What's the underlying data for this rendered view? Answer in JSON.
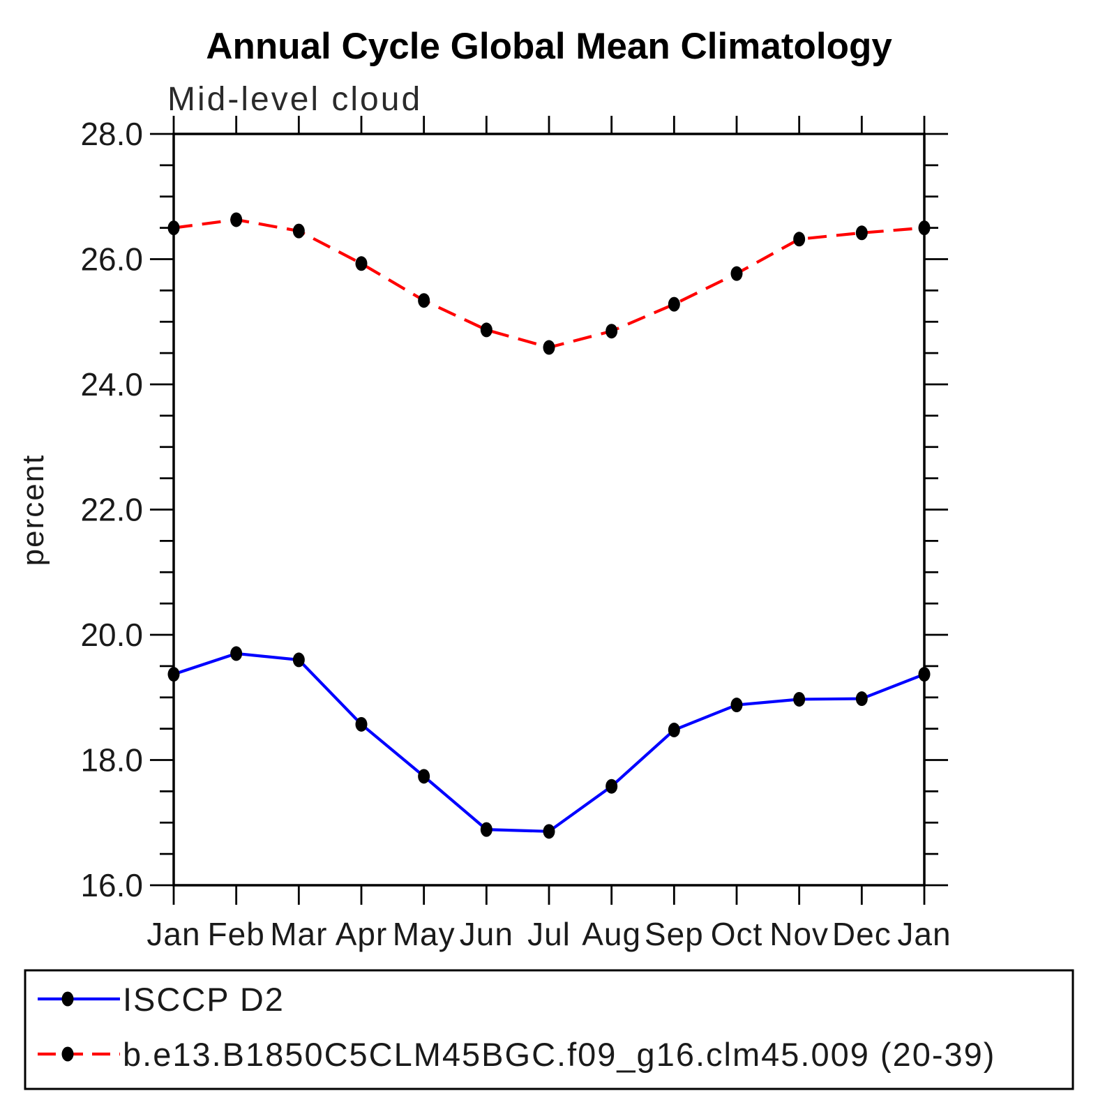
{
  "title": "Annual Cycle Global Mean Climatology",
  "subtitle": "Mid-level cloud",
  "chart_data": {
    "type": "line",
    "categories": [
      "Jan",
      "Feb",
      "Mar",
      "Apr",
      "May",
      "Jun",
      "Jul",
      "Aug",
      "Sep",
      "Oct",
      "Nov",
      "Dec",
      "Jan"
    ],
    "title": "Annual Cycle Global Mean Climatology",
    "subtitle": "Mid-level cloud",
    "xlabel": "",
    "ylabel": "percent",
    "ylim": [
      16.0,
      28.0
    ],
    "ytick_labels": [
      "28.0",
      "26.0",
      "24.0",
      "22.0",
      "20.0",
      "18.0",
      "16.0"
    ],
    "ytick_major_step": 2.0,
    "ytick_minor_step": 0.5,
    "grid": false,
    "legend_position": "bottom-box",
    "marker": "filled-circle",
    "marker_color": "#000000",
    "series": [
      {
        "name": "ISCCP D2",
        "color": "#0000ff",
        "line_style": "solid",
        "values": [
          19.37,
          19.7,
          19.6,
          18.57,
          17.74,
          16.89,
          16.86,
          17.58,
          18.48,
          18.88,
          18.97,
          18.98,
          19.37
        ]
      },
      {
        "name": "b.e13.B1850C5CLM45BGC.f09_g16.clm45.009 (20-39)",
        "color": "#ff0000",
        "line_style": "dashed",
        "values": [
          26.5,
          26.63,
          26.45,
          25.93,
          25.34,
          24.87,
          24.59,
          24.85,
          25.28,
          25.77,
          26.32,
          26.42,
          26.5
        ]
      }
    ]
  }
}
